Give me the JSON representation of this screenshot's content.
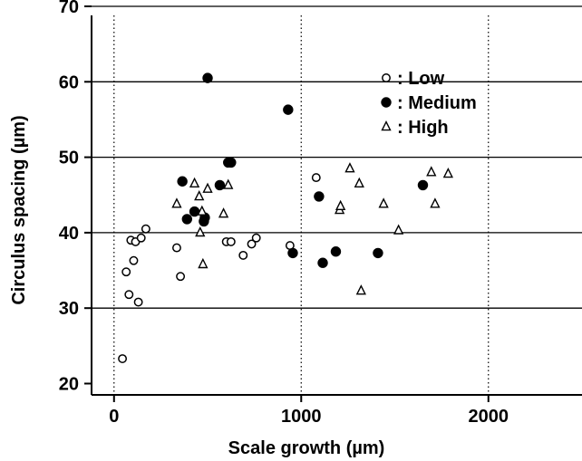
{
  "chart_data": {
    "type": "scatter",
    "title": "",
    "xlabel": "Scale growth (µm)",
    "ylabel": "Circulus spacing (µm)",
    "xlim": [
      -120,
      2500
    ],
    "ylim": [
      18.5,
      70
    ],
    "xticks": [
      0,
      1000,
      2000
    ],
    "yticks": [
      20,
      30,
      40,
      50,
      60,
      70
    ],
    "grid": true,
    "legend_position": "top-right",
    "series": [
      {
        "name": "Low",
        "marker": "open-circle",
        "color": "#000000",
        "points": [
          [
            45,
            23.3
          ],
          [
            65,
            34.8
          ],
          [
            80,
            31.8
          ],
          [
            90,
            39.0
          ],
          [
            105,
            36.3
          ],
          [
            115,
            38.8
          ],
          [
            130,
            30.8
          ],
          [
            145,
            39.3
          ],
          [
            170,
            40.5
          ],
          [
            335,
            38.0
          ],
          [
            355,
            34.2
          ],
          [
            600,
            38.8
          ],
          [
            625,
            38.8
          ],
          [
            690,
            37.0
          ],
          [
            735,
            38.5
          ],
          [
            760,
            39.3
          ],
          [
            940,
            38.3
          ],
          [
            1080,
            47.3
          ]
        ]
      },
      {
        "name": "Medium",
        "marker": "filled-circle",
        "color": "#000000",
        "points": [
          [
            365,
            46.8
          ],
          [
            390,
            41.8
          ],
          [
            430,
            42.8
          ],
          [
            480,
            41.5
          ],
          [
            485,
            42.0
          ],
          [
            500,
            60.5
          ],
          [
            565,
            46.3
          ],
          [
            610,
            49.3
          ],
          [
            625,
            49.3
          ],
          [
            930,
            56.3
          ],
          [
            955,
            37.3
          ],
          [
            1095,
            44.8
          ],
          [
            1115,
            36.0
          ],
          [
            1185,
            37.5
          ],
          [
            1410,
            37.3
          ],
          [
            1650,
            46.3
          ]
        ]
      },
      {
        "name": "High",
        "marker": "open-triangle",
        "color": "#000000",
        "points": [
          [
            335,
            43.8
          ],
          [
            430,
            46.5
          ],
          [
            455,
            44.8
          ],
          [
            460,
            40.0
          ],
          [
            470,
            42.8
          ],
          [
            475,
            35.8
          ],
          [
            500,
            45.8
          ],
          [
            585,
            42.5
          ],
          [
            610,
            46.3
          ],
          [
            1205,
            43.0
          ],
          [
            1210,
            43.5
          ],
          [
            1260,
            48.5
          ],
          [
            1310,
            46.5
          ],
          [
            1320,
            32.3
          ],
          [
            1440,
            43.8
          ],
          [
            1520,
            40.3
          ],
          [
            1695,
            48.0
          ],
          [
            1715,
            43.8
          ],
          [
            1785,
            47.8
          ]
        ]
      }
    ],
    "legend": [
      {
        "label": ": Low",
        "marker": "open-circle"
      },
      {
        "label": ": Medium",
        "marker": "filled-circle"
      },
      {
        "label": ": High",
        "marker": "open-triangle"
      }
    ]
  }
}
